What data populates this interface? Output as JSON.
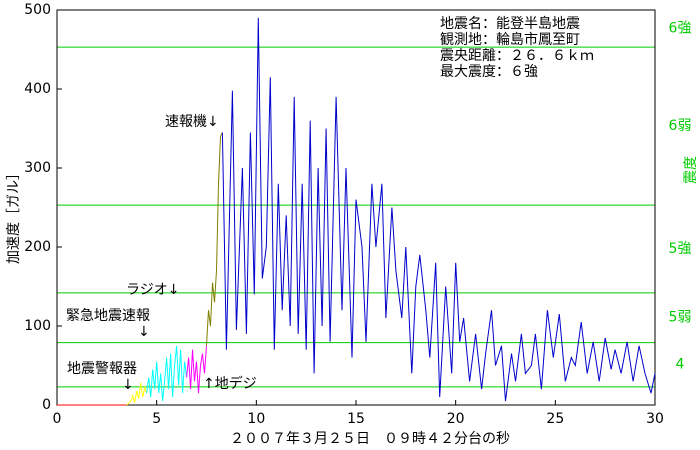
{
  "chart_data": {
    "type": "line",
    "title_lines": [
      "地震名：能登半島地震",
      "観測地：輪島市鳳至町",
      "震央距離：２６．６ｋｍ",
      "最大震度：６強"
    ],
    "x_label": "２００７年３月２５日　０９時４２分台の秒",
    "y_label": "加速度［ガル］",
    "y2_label": "震度",
    "xlim": [
      0,
      30
    ],
    "xticks": [
      0,
      5,
      10,
      15,
      20,
      25,
      30
    ],
    "ylim": [
      0,
      500
    ],
    "yticks": [
      0,
      100,
      200,
      300,
      400,
      500
    ],
    "intensity_levels": [
      {
        "label": "4",
        "value": 23,
        "color": "#00cc00"
      },
      {
        "label": "5弱",
        "value": 79,
        "color": "#00cc00"
      },
      {
        "label": "5強",
        "value": 142,
        "color": "#00cc00"
      },
      {
        "label": "6弱",
        "value": 253,
        "color": "#00cc00"
      },
      {
        "label": "6強",
        "value": 453,
        "color": "#00cc00"
      }
    ],
    "annotations": [
      "速報機↓",
      "ラジオ↓",
      "緊急地震速報",
      "↓",
      "地震警報器",
      "↓",
      "↑地デジ"
    ],
    "series": [
      {
        "color": "#ff0000",
        "x": [
          0,
          3.5
        ],
        "values": [
          0,
          0
        ]
      },
      {
        "color": "#ffff00",
        "x": [
          3.5,
          3.7,
          3.8,
          3.9,
          4.0,
          4.1,
          4.2,
          4.3,
          4.4,
          4.5
        ],
        "values": [
          0,
          5,
          12,
          3,
          18,
          8,
          28,
          10,
          22,
          15
        ]
      },
      {
        "color": "#00ffff",
        "x": [
          4.5,
          4.6,
          4.7,
          4.8,
          4.9,
          5.0,
          5.1,
          5.2,
          5.3,
          5.4,
          5.5,
          5.6,
          5.7,
          5.8,
          5.9,
          6.0,
          6.1,
          6.2,
          6.3,
          6.4,
          6.5
        ],
        "values": [
          15,
          35,
          10,
          45,
          20,
          55,
          15,
          40,
          5,
          30,
          60,
          20,
          65,
          10,
          50,
          75,
          25,
          70,
          15,
          55,
          35
        ]
      },
      {
        "color": "#ff00ff",
        "x": [
          6.5,
          6.6,
          6.7,
          6.8,
          6.9,
          7.0,
          7.1,
          7.2,
          7.3,
          7.4,
          7.5
        ],
        "values": [
          35,
          60,
          20,
          70,
          30,
          55,
          15,
          50,
          65,
          40,
          75
        ]
      },
      {
        "color": "#808000",
        "x": [
          7.5,
          7.6,
          7.7,
          7.8,
          7.9,
          8.0,
          8.1,
          8.2,
          8.3
        ],
        "values": [
          75,
          120,
          100,
          155,
          130,
          170,
          280,
          340,
          345
        ]
      },
      {
        "color": "#0000cc",
        "x": [
          8.3,
          8.5,
          8.8,
          9.0,
          9.3,
          9.5,
          9.7,
          9.9,
          10.1,
          10.3,
          10.5,
          10.7,
          10.9,
          11.1,
          11.3,
          11.5,
          11.7,
          11.9,
          12.1,
          12.3,
          12.5,
          12.7,
          12.9,
          13.1,
          13.3,
          13.5,
          13.7,
          14.0,
          14.3,
          14.5,
          14.8,
          15.0,
          15.3,
          15.5,
          15.8,
          16.0,
          16.3,
          16.5,
          16.8,
          17.0,
          17.3,
          17.5,
          17.8,
          18.0,
          18.2,
          18.5,
          18.7,
          19.0,
          19.2,
          19.5,
          19.8,
          20.0,
          20.2,
          20.4,
          20.7,
          21.0,
          21.3,
          21.5,
          21.8,
          22.0,
          22.3,
          22.5,
          22.8,
          23.0,
          23.3,
          23.5,
          23.8,
          24.0,
          24.3,
          24.6,
          24.9,
          25.2,
          25.5,
          25.8,
          26.0,
          26.3,
          26.6,
          26.9,
          27.2,
          27.5,
          27.8,
          28.0,
          28.3,
          28.6,
          28.9,
          29.2,
          29.5,
          29.8,
          30.0
        ],
        "values": [
          345,
          70,
          398,
          95,
          300,
          90,
          345,
          140,
          490,
          160,
          200,
          415,
          70,
          280,
          120,
          240,
          100,
          390,
          90,
          280,
          70,
          360,
          40,
          300,
          100,
          350,
          80,
          390,
          120,
          300,
          60,
          260,
          200,
          80,
          280,
          200,
          280,
          110,
          250,
          170,
          110,
          200,
          40,
          150,
          190,
          120,
          60,
          180,
          10,
          150,
          40,
          180,
          80,
          110,
          30,
          90,
          20,
          65,
          120,
          50,
          75,
          5,
          65,
          30,
          90,
          40,
          50,
          90,
          20,
          120,
          60,
          115,
          30,
          60,
          50,
          105,
          40,
          80,
          30,
          85,
          45,
          70,
          40,
          80,
          30,
          75,
          40,
          15,
          40
        ]
      }
    ]
  }
}
